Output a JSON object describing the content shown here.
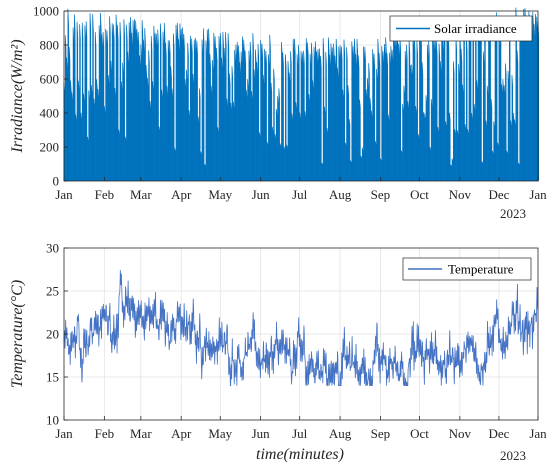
{
  "chart_data": [
    {
      "type": "area",
      "ylabel": "Irradiance(W/m²)",
      "xlabel": "",
      "x_tick_labels": [
        "Jan",
        "Feb",
        "Mar",
        "Apr",
        "May",
        "Jun",
        "Jul",
        "Aug",
        "Sep",
        "Oct",
        "Nov",
        "Dec",
        "Jan"
      ],
      "year_label": "2023",
      "xlim": [
        "2023-01-01",
        "2023-12-31"
      ],
      "ylim": [
        0,
        1000
      ],
      "y_ticks": [
        0,
        200,
        400,
        600,
        800,
        1000
      ],
      "grid": true,
      "legend_position": "top-right",
      "series": [
        {
          "name": "Solar irradiance",
          "color": "#0072BD",
          "x_monthly": [
            "Jan",
            "Feb",
            "Mar",
            "Apr",
            "May",
            "Jun",
            "Jul",
            "Aug",
            "Sep",
            "Oct",
            "Nov",
            "Dec"
          ],
          "daily_peak_monthly_typical": [
            990,
            960,
            930,
            890,
            860,
            840,
            830,
            840,
            860,
            900,
            960,
            1000
          ],
          "annual_max": 1020,
          "annual_min": 0
        }
      ]
    },
    {
      "type": "line",
      "ylabel": "Temperature(°C)",
      "xlabel": "time(minutes)",
      "x_tick_labels": [
        "Jan",
        "Feb",
        "Mar",
        "Apr",
        "May",
        "Jun",
        "Jul",
        "Aug",
        "Sep",
        "Oct",
        "Nov",
        "Dec",
        "Jan"
      ],
      "year_label": "2023",
      "xlim": [
        "2023-01-01",
        "2023-12-31"
      ],
      "ylim": [
        10,
        30
      ],
      "y_ticks": [
        10,
        15,
        20,
        25,
        30
      ],
      "grid": true,
      "legend_position": "top-right",
      "series": [
        {
          "name": "Temperature",
          "color": "#4472C4",
          "x": [
            "2023-01-01",
            "2023-01-15",
            "2023-02-01",
            "2023-02-15",
            "2023-03-01",
            "2023-03-15",
            "2023-04-01",
            "2023-04-15",
            "2023-05-01",
            "2023-05-15",
            "2023-06-01",
            "2023-06-15",
            "2023-07-01",
            "2023-07-15",
            "2023-08-01",
            "2023-08-15",
            "2023-09-01",
            "2023-09-15",
            "2023-10-01",
            "2023-10-15",
            "2023-11-01",
            "2023-11-15",
            "2023-12-01",
            "2023-12-15",
            "2023-12-31"
          ],
          "y": [
            19.5,
            20.5,
            21.5,
            22.5,
            22,
            21.5,
            21,
            19.5,
            18.5,
            18,
            18,
            17.5,
            17,
            16.5,
            16.5,
            16,
            16.5,
            16.5,
            17,
            17,
            17.5,
            18,
            19.5,
            20.5,
            22
          ],
          "annual_max": 28,
          "annual_min": 14
        }
      ]
    }
  ]
}
